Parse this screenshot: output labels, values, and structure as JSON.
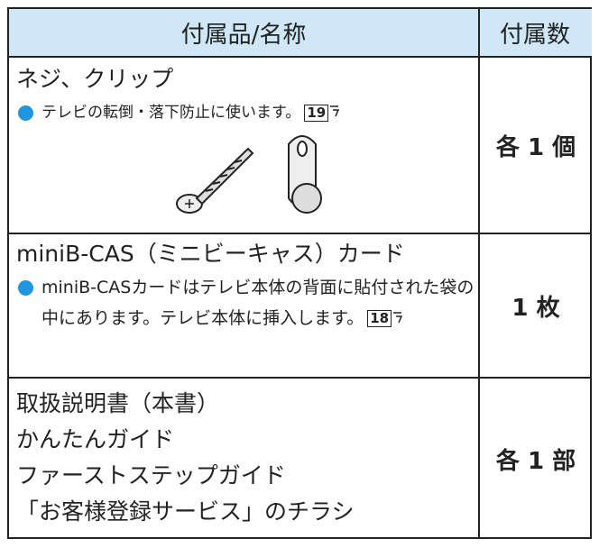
{
  "table": {
    "header": [
      "付属品/名称",
      "付属数"
    ],
    "rows": [
      {
        "name_lines": [
          "ネジ、クリップ"
        ],
        "note": "テレビの転倒・落下防止に使います。",
        "page_ref": "19",
        "count": "各 1 個"
      },
      {
        "name_lines": [
          "miniB-CAS（ミニビーキャス）カード"
        ],
        "note": "miniB-CASカードはテレビ本体の背面に貼付された袋の中にあります。テレビ本体に挿入します。",
        "page_ref": "18",
        "count": "1 枚"
      },
      {
        "name_lines": [
          "取扱説明書（本書）",
          "かんたんガイド",
          "ファーストステップガイド",
          "「お客様登録サービス」のチラシ"
        ],
        "count": "各 1 部"
      }
    ]
  }
}
